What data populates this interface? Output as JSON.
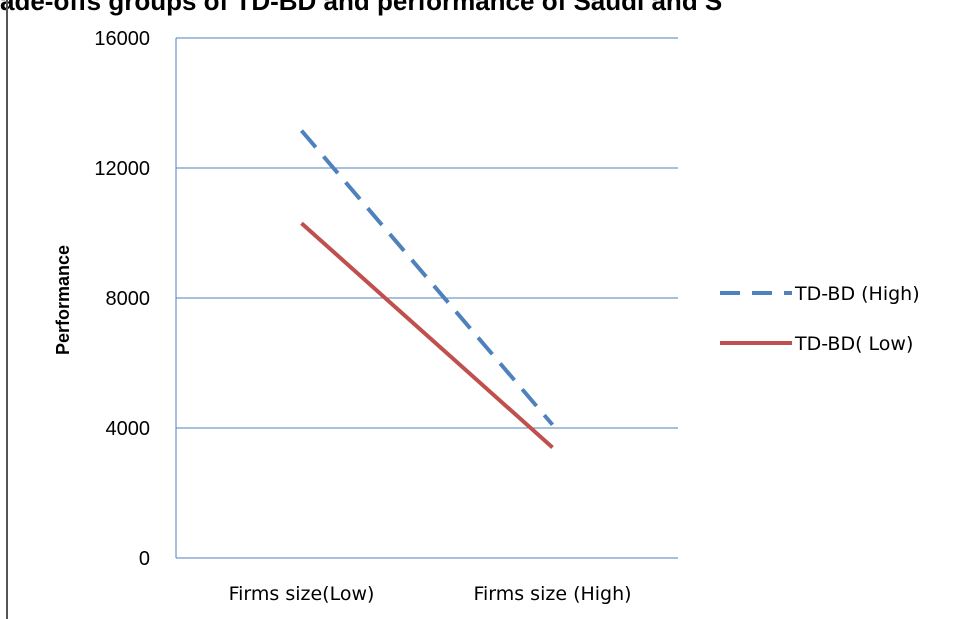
{
  "header_fragment": "ade-offs groups of TD-BD and performance of Saudi and S",
  "chart_data": {
    "type": "line",
    "categories": [
      "Firms size(Low)",
      "Firms size (High)"
    ],
    "series": [
      {
        "name": "TD-BD (High)",
        "values": [
          13150,
          4100
        ],
        "color": "#4F81BD",
        "style": "dashed"
      },
      {
        "name": "TD-BD( Low)",
        "values": [
          10300,
          3400
        ],
        "color": "#C0504D",
        "style": "solid"
      }
    ],
    "ylabel": "Performance",
    "ylim": [
      0,
      16000
    ],
    "yticks": [
      "0",
      "4000",
      "8000",
      "12000",
      "16000"
    ],
    "grid": true,
    "legend": "right"
  }
}
